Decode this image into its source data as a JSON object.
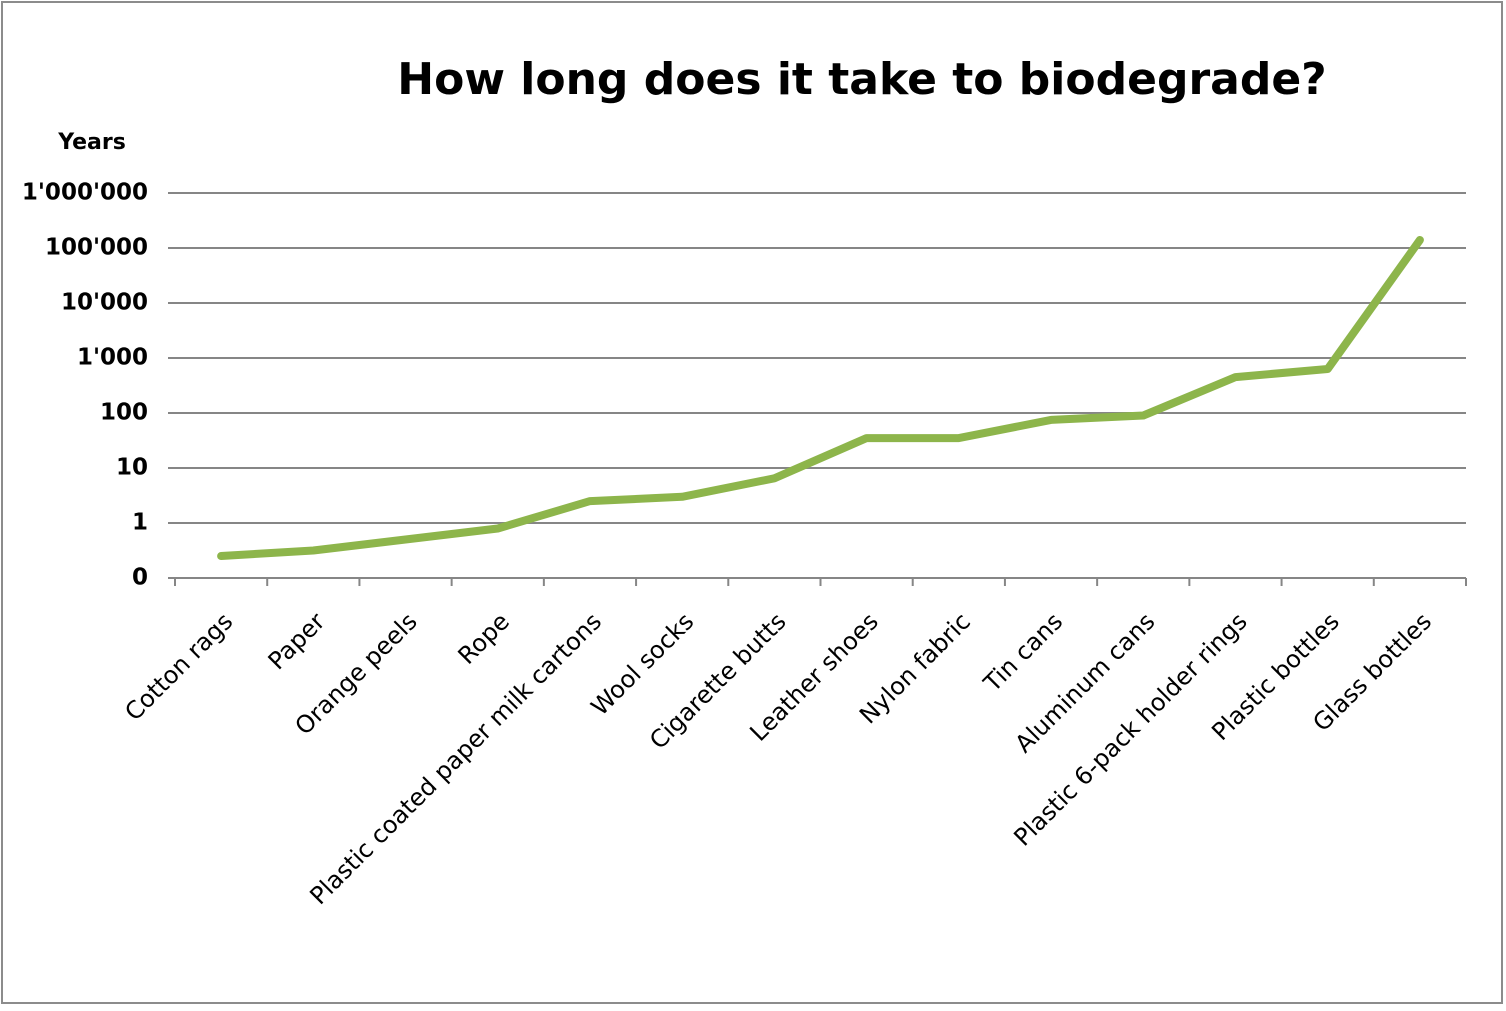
{
  "chart_data": {
    "type": "line",
    "title": "How long does it take to biodegrade?",
    "y_label": "Years",
    "categories": [
      "Cotton rags",
      "Paper",
      "Orange peels",
      "Rope",
      "Plastic coated paper milk cartons",
      "Wool socks",
      "Cigarette butts",
      "Leather shoes",
      "Nylon fabric",
      "Tin cans",
      "Aluminum cans",
      "Plastic 6-pack holder rings",
      "Plastic bottles",
      "Glass bottles"
    ],
    "values": [
      0.4,
      0.5,
      0.7,
      0.9,
      2.5,
      3,
      6.5,
      35,
      35,
      75,
      90,
      450,
      630,
      140000
    ],
    "color": "#8db54b",
    "yscale": "log-linear-below-1",
    "ylim": [
      0,
      1000000
    ],
    "yticks": [
      0,
      1,
      10,
      100,
      {
        "value": 1000,
        "label": "1'000"
      },
      {
        "value": 10000,
        "label": "10'000"
      },
      {
        "value": 100000,
        "label": "100'000"
      },
      {
        "value": 1000000,
        "label": "1'000'000"
      }
    ],
    "grid": true
  }
}
